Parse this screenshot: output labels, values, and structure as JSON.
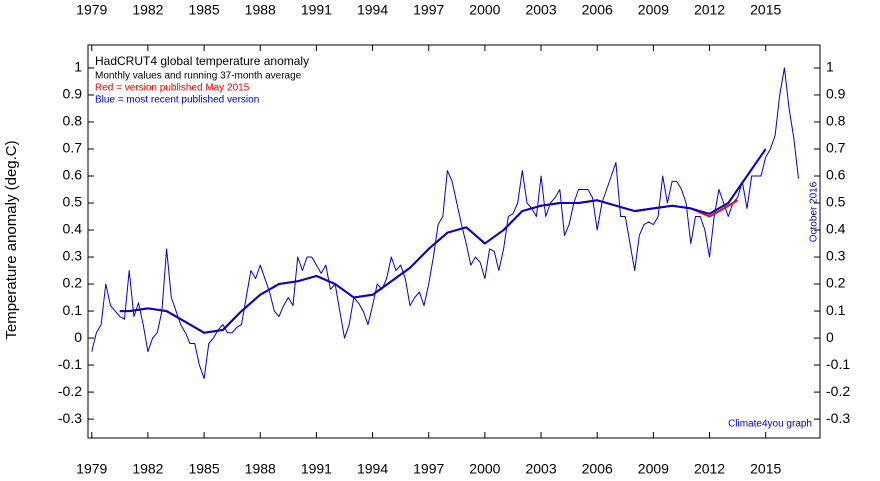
{
  "chart_data": {
    "type": "line",
    "title": "HadCRUT4 global temperature anomaly",
    "subtitle": "Monthly values and running 37-month average",
    "annotations": [
      "Red = version published May 2015",
      "Blue = most recent published version",
      "October 2016",
      "Climate4you graph"
    ],
    "y_label": "Temperature anomaly (deg.C)",
    "xlim": [
      1978.8,
      2017.9
    ],
    "ylim": [
      -0.37,
      1.085
    ],
    "xticks": [
      1979,
      1982,
      1985,
      1988,
      1991,
      1994,
      1997,
      2000,
      2003,
      2006,
      2009,
      2012,
      2015
    ],
    "yticks": [
      -0.3,
      -0.2,
      -0.1,
      0,
      0.1,
      0.2,
      0.3,
      0.4,
      0.5,
      0.6,
      0.7,
      0.8,
      0.9,
      1
    ],
    "series": [
      {
        "color": "#0000cc",
        "width": 1,
        "x": [
          1979,
          1979.25,
          1979.5,
          1979.75,
          1980,
          1980.25,
          1980.5,
          1980.75,
          1981,
          1981.25,
          1981.5,
          1981.75,
          1982,
          1982.25,
          1982.5,
          1982.75,
          1983,
          1983.25,
          1983.5,
          1983.75,
          1984,
          1984.25,
          1984.5,
          1984.75,
          1985,
          1985.25,
          1985.5,
          1985.75,
          1986,
          1986.25,
          1986.5,
          1986.75,
          1987,
          1987.25,
          1987.5,
          1987.75,
          1988,
          1988.25,
          1988.5,
          1988.75,
          1989,
          1989.25,
          1989.5,
          1989.75,
          1990,
          1990.25,
          1990.5,
          1990.75,
          1991,
          1991.25,
          1991.5,
          1991.75,
          1992,
          1992.25,
          1992.5,
          1992.75,
          1993,
          1993.25,
          1993.5,
          1993.75,
          1994,
          1994.25,
          1994.5,
          1994.75,
          1995,
          1995.25,
          1995.5,
          1995.75,
          1996,
          1996.25,
          1996.5,
          1996.75,
          1997,
          1997.25,
          1997.5,
          1997.75,
          1998,
          1998.25,
          1998.5,
          1998.75,
          1999,
          1999.25,
          1999.5,
          1999.75,
          2000,
          2000.25,
          2000.5,
          2000.75,
          2001,
          2001.25,
          2001.5,
          2001.75,
          2002,
          2002.25,
          2002.5,
          2002.75,
          2003,
          2003.25,
          2003.5,
          2003.75,
          2004,
          2004.25,
          2004.5,
          2004.75,
          2005,
          2005.25,
          2005.5,
          2005.75,
          2006,
          2006.25,
          2006.5,
          2006.75,
          2007,
          2007.25,
          2007.5,
          2007.75,
          2008,
          2008.25,
          2008.5,
          2008.75,
          2009,
          2009.25,
          2009.5,
          2009.75,
          2010,
          2010.25,
          2010.5,
          2010.75,
          2011,
          2011.25,
          2011.5,
          2011.75,
          2012,
          2012.25,
          2012.5,
          2012.75,
          2013,
          2013.25,
          2013.5,
          2013.75,
          2014,
          2014.25,
          2014.5,
          2014.75,
          2015,
          2015.25,
          2015.5,
          2015.75,
          2016,
          2016.25,
          2016.5,
          2016.75
        ],
        "values": [
          -0.05,
          0.02,
          0.05,
          0.2,
          0.12,
          0.1,
          0.08,
          0.07,
          0.25,
          0.08,
          0.13,
          0.05,
          -0.05,
          0.0,
          0.02,
          0.1,
          0.33,
          0.15,
          0.1,
          0.05,
          0.02,
          -0.02,
          -0.02,
          -0.1,
          -0.15,
          -0.02,
          0.0,
          0.03,
          0.05,
          0.02,
          0.02,
          0.04,
          0.05,
          0.15,
          0.25,
          0.22,
          0.27,
          0.22,
          0.17,
          0.1,
          0.08,
          0.12,
          0.15,
          0.12,
          0.3,
          0.25,
          0.3,
          0.3,
          0.27,
          0.24,
          0.27,
          0.18,
          0.2,
          0.1,
          0.0,
          0.05,
          0.15,
          0.13,
          0.1,
          0.05,
          0.12,
          0.2,
          0.18,
          0.22,
          0.3,
          0.25,
          0.27,
          0.22,
          0.12,
          0.15,
          0.17,
          0.12,
          0.2,
          0.3,
          0.42,
          0.45,
          0.62,
          0.58,
          0.5,
          0.42,
          0.35,
          0.27,
          0.3,
          0.28,
          0.22,
          0.33,
          0.32,
          0.25,
          0.33,
          0.45,
          0.46,
          0.5,
          0.62,
          0.5,
          0.48,
          0.45,
          0.6,
          0.45,
          0.5,
          0.52,
          0.55,
          0.38,
          0.42,
          0.5,
          0.55,
          0.55,
          0.55,
          0.52,
          0.4,
          0.5,
          0.55,
          0.6,
          0.65,
          0.45,
          0.45,
          0.35,
          0.25,
          0.38,
          0.42,
          0.43,
          0.42,
          0.45,
          0.6,
          0.5,
          0.58,
          0.58,
          0.55,
          0.5,
          0.35,
          0.45,
          0.45,
          0.4,
          0.3,
          0.45,
          0.55,
          0.5,
          0.45,
          0.5,
          0.52,
          0.58,
          0.48,
          0.6,
          0.6,
          0.6,
          0.67,
          0.7,
          0.75,
          0.9,
          1.0,
          0.85,
          0.74,
          0.59
        ]
      },
      {
        "color": "#ff0000",
        "width": 2,
        "x": [
          1980.5,
          1981,
          1982,
          1983,
          1984,
          1985,
          1986,
          1987,
          1988,
          1989,
          1990,
          1991,
          1992,
          1993,
          1994,
          1995,
          1996,
          1997,
          1998,
          1999,
          2000,
          2001,
          2002,
          2003,
          2004,
          2005,
          2006,
          2007,
          2008,
          2009,
          2010,
          2011,
          2012,
          2013,
          2013.5
        ],
        "values": [
          0.1,
          0.1,
          0.11,
          0.1,
          0.06,
          0.02,
          0.03,
          0.1,
          0.16,
          0.2,
          0.21,
          0.23,
          0.2,
          0.15,
          0.16,
          0.21,
          0.26,
          0.33,
          0.39,
          0.41,
          0.35,
          0.4,
          0.47,
          0.49,
          0.5,
          0.5,
          0.51,
          0.49,
          0.47,
          0.48,
          0.49,
          0.48,
          0.45,
          0.49,
          0.51
        ]
      },
      {
        "color": "#0000cc",
        "width": 2,
        "x": [
          1980.5,
          1981,
          1982,
          1983,
          1984,
          1985,
          1986,
          1987,
          1988,
          1989,
          1990,
          1991,
          1992,
          1993,
          1994,
          1995,
          1996,
          1997,
          1998,
          1999,
          2000,
          2001,
          2002,
          2003,
          2004,
          2005,
          2006,
          2007,
          2008,
          2009,
          2010,
          2011,
          2012,
          2013,
          2014,
          2015
        ],
        "values": [
          0.1,
          0.1,
          0.11,
          0.1,
          0.06,
          0.02,
          0.03,
          0.1,
          0.16,
          0.2,
          0.21,
          0.23,
          0.2,
          0.15,
          0.16,
          0.21,
          0.26,
          0.33,
          0.39,
          0.41,
          0.35,
          0.4,
          0.47,
          0.49,
          0.5,
          0.5,
          0.51,
          0.49,
          0.47,
          0.48,
          0.49,
          0.48,
          0.46,
          0.5,
          0.6,
          0.7
        ]
      }
    ]
  }
}
